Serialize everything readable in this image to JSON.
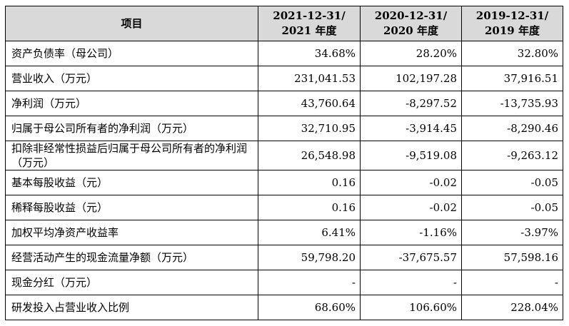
{
  "table": {
    "header": {
      "item": "项目",
      "col1_line1": "2021-12-31/",
      "col1_line2": "2021 年度",
      "col2_line1": "2020-12-31/",
      "col2_line2": "2020 年度",
      "col3_line1": "2019-12-31/",
      "col3_line2": "2019 年度"
    },
    "rows": [
      {
        "label": "资产负债率（母公司）",
        "v2021": "34.68%",
        "v2020": "28.20%",
        "v2019": "32.80%"
      },
      {
        "label": "营业收入（万元）",
        "v2021": "231,041.53",
        "v2020": "102,197.28",
        "v2019": "37,916.51"
      },
      {
        "label": "净利润（万元）",
        "v2021": "43,760.64",
        "v2020": "-8,297.52",
        "v2019": "-13,735.93"
      },
      {
        "label": "归属于母公司所有者的净利润（万元）",
        "v2021": "32,710.95",
        "v2020": "-3,914.45",
        "v2019": "-8,290.46"
      },
      {
        "label": "扣除非经常性损益后归属于母公司所有者的净利润（万元）",
        "v2021": "26,548.98",
        "v2020": "-9,519.08",
        "v2019": "-9,263.12"
      },
      {
        "label": "基本每股收益（元）",
        "v2021": "0.16",
        "v2020": "-0.02",
        "v2019": "-0.05"
      },
      {
        "label": "稀释每股收益（元）",
        "v2021": "0.16",
        "v2020": "-0.02",
        "v2019": "-0.05"
      },
      {
        "label": "加权平均净资产收益率",
        "v2021": "6.41%",
        "v2020": "-1.16%",
        "v2019": "-3.97%"
      },
      {
        "label": "经营活动产生的现金流量净额（万元）",
        "v2021": "59,798.20",
        "v2020": "-37,675.57",
        "v2019": "57,598.16"
      },
      {
        "label": "现金分红（万元）",
        "v2021": "-",
        "v2020": "-",
        "v2019": "-"
      },
      {
        "label": "研发投入占营业收入比例",
        "v2021": "68.60%",
        "v2020": "106.60%",
        "v2019": "228.04%"
      }
    ]
  }
}
